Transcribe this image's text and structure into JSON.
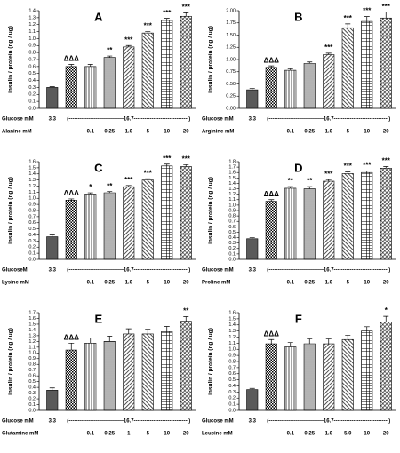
{
  "chart_data": [
    {
      "type": "bar",
      "title": "A",
      "ylabel": "insulin / protein (ng / ug)",
      "row1_label": "Glucose mM",
      "low_glucose": "3.3",
      "high_glucose": "(-------------------------------16.7-------------------------------)",
      "row2_label": "Alanine mM---",
      "categories": [
        null,
        "---",
        "0.1",
        "0.25",
        "1.0",
        "5",
        "10",
        "20"
      ],
      "values": [
        0.3,
        0.6,
        0.6,
        0.73,
        0.88,
        1.08,
        1.26,
        1.32
      ],
      "errors": [
        0.01,
        0.03,
        0.03,
        0.02,
        0.02,
        0.02,
        0.03,
        0.05
      ],
      "annotations": [
        null,
        "ΔΔΔ",
        null,
        "**",
        "***",
        "***",
        "***",
        "***"
      ],
      "ylim": [
        0,
        1.4
      ],
      "yticks": [
        {
          "value": 0,
          "label": "0.0"
        },
        0.1,
        0.2,
        0.3,
        0.4,
        0.5,
        0.6,
        0.7,
        0.8,
        0.9,
        {
          "value": 1,
          "label": "1.0"
        },
        1.1,
        1.2,
        1.3,
        1.4
      ]
    },
    {
      "type": "bar",
      "title": "B",
      "ylabel": "insulin / protein (ng / ug)",
      "row1_label": "Glucose mM",
      "low_glucose": "3.3",
      "high_glucose": "(-------------------------------16.7-------------------------------)",
      "row2_label": "Arginine mM---",
      "categories": [
        null,
        "---",
        "0.1",
        "0.25",
        "1.0",
        "5",
        "10",
        "20"
      ],
      "values": [
        0.38,
        0.84,
        0.78,
        0.92,
        1.1,
        1.65,
        1.78,
        1.85
      ],
      "errors": [
        0.03,
        0.03,
        0.03,
        0.03,
        0.03,
        0.08,
        0.1,
        0.12
      ],
      "annotations": [
        null,
        "ΔΔΔ",
        null,
        null,
        "***",
        "***",
        "***",
        "***"
      ],
      "ylim": [
        0,
        2
      ],
      "yticks": [
        {
          "value": 0,
          "label": "0.00"
        },
        0.25,
        {
          "value": 0.5,
          "label": "0.50"
        },
        0.75,
        {
          "value": 1,
          "label": "1.00"
        },
        1.25,
        {
          "value": 1.5,
          "label": "1.50"
        },
        1.75,
        {
          "value": 2,
          "label": "2.00"
        }
      ]
    },
    {
      "type": "bar",
      "title": "C",
      "ylabel": "insulin / protein (ng / ug)",
      "row1_label": "GlucoseM",
      "low_glucose": "3.3",
      "high_glucose": "(-------------------------------16.7-------------------------------)",
      "row2_label": "Lysine mM---",
      "categories": [
        null,
        "---",
        "0.1",
        "0.25",
        "1.0",
        "5",
        "10",
        "20"
      ],
      "values": [
        0.37,
        0.97,
        1.07,
        1.09,
        1.19,
        1.3,
        1.53,
        1.52
      ],
      "errors": [
        0.03,
        0.02,
        0.02,
        0.02,
        0.02,
        0.02,
        0.03,
        0.03
      ],
      "annotations": [
        null,
        "ΔΔΔ",
        "*",
        "**",
        "***",
        "***",
        "***",
        "***"
      ],
      "ylim": [
        0,
        1.6
      ],
      "yticks": [
        {
          "value": 0,
          "label": "0.0"
        },
        0.1,
        0.2,
        0.3,
        0.4,
        0.5,
        0.6,
        0.7,
        0.8,
        0.9,
        {
          "value": 1,
          "label": "1.0"
        },
        1.1,
        1.2,
        1.3,
        1.4,
        1.5,
        1.6
      ]
    },
    {
      "type": "bar",
      "title": "D",
      "ylabel": "insulin / protein (ng / ug)",
      "row1_label": "Glucose mM",
      "low_glucose": "3.3",
      "high_glucose": "(-------------------------------16.7-------------------------------)",
      "row2_label": "Proline mM---",
      "categories": [
        null,
        "---",
        "0.1",
        "0.25",
        "1.0",
        "5",
        "10",
        "20"
      ],
      "values": [
        0.38,
        1.07,
        1.31,
        1.3,
        1.44,
        1.58,
        1.6,
        1.68
      ],
      "errors": [
        0.02,
        0.03,
        0.03,
        0.04,
        0.03,
        0.03,
        0.03,
        0.03
      ],
      "annotations": [
        null,
        "ΔΔΔ",
        "**",
        "**",
        "***",
        "***",
        "***",
        "***"
      ],
      "ylim": [
        0,
        1.8
      ],
      "yticks": [
        {
          "value": 0,
          "label": "0.0"
        },
        0.1,
        0.2,
        0.3,
        0.4,
        0.5,
        0.6,
        0.7,
        0.8,
        0.9,
        {
          "value": 1,
          "label": "1.0"
        },
        1.1,
        1.2,
        1.3,
        1.4,
        1.5,
        1.6,
        1.7,
        1.8
      ]
    },
    {
      "type": "bar",
      "title": "E",
      "ylabel": "insulin / protein (ng / ug)",
      "row1_label": "Glucose mM",
      "low_glucose": "3.3",
      "high_glucose": "(-------------------------------16.7-------------------------------)",
      "row2_label": "Glutamine mM---",
      "categories": [
        null,
        "---",
        "0.1",
        "0.25",
        "1",
        "5",
        "10",
        "20"
      ],
      "values": [
        0.35,
        1.05,
        1.17,
        1.2,
        1.33,
        1.33,
        1.37,
        1.55
      ],
      "errors": [
        0.04,
        0.12,
        0.09,
        0.09,
        0.09,
        0.08,
        0.09,
        0.08
      ],
      "annotations": [
        null,
        "ΔΔΔ",
        null,
        null,
        null,
        null,
        null,
        "**"
      ],
      "ylim": [
        0,
        1.7
      ],
      "yticks": [
        {
          "value": 0,
          "label": "0.0"
        },
        0.1,
        0.2,
        0.3,
        0.4,
        0.5,
        0.6,
        0.7,
        0.8,
        0.9,
        {
          "value": 1,
          "label": "1.0"
        },
        1.1,
        1.2,
        1.3,
        1.4,
        1.5,
        1.6,
        1.7
      ]
    },
    {
      "type": "bar",
      "title": "F",
      "ylabel": "insulin / protein (ng / ug)",
      "row1_label": "Glucose mM",
      "low_glucose": "3.3",
      "high_glucose": "(-------------------------------16.7-------------------------------)",
      "row2_label": "Leucine mM---",
      "categories": [
        null,
        "---",
        "0.1",
        "0.25",
        "1.0",
        "5.0",
        "10",
        "20"
      ],
      "values": [
        0.34,
        1.09,
        1.04,
        1.09,
        1.09,
        1.16,
        1.3,
        1.45
      ],
      "errors": [
        0.02,
        0.07,
        0.07,
        0.08,
        0.08,
        0.07,
        0.07,
        0.09
      ],
      "annotations": [
        null,
        "ΔΔΔ",
        null,
        null,
        null,
        null,
        null,
        "*"
      ],
      "ylim": [
        0,
        1.6
      ],
      "yticks": [
        {
          "value": 0,
          "label": "0.0"
        },
        0.1,
        0.2,
        0.3,
        0.4,
        0.5,
        0.6,
        0.7,
        0.8,
        0.9,
        {
          "value": 1,
          "label": "1.0"
        },
        1.1,
        1.2,
        1.3,
        1.4,
        1.5,
        1.6
      ]
    }
  ]
}
